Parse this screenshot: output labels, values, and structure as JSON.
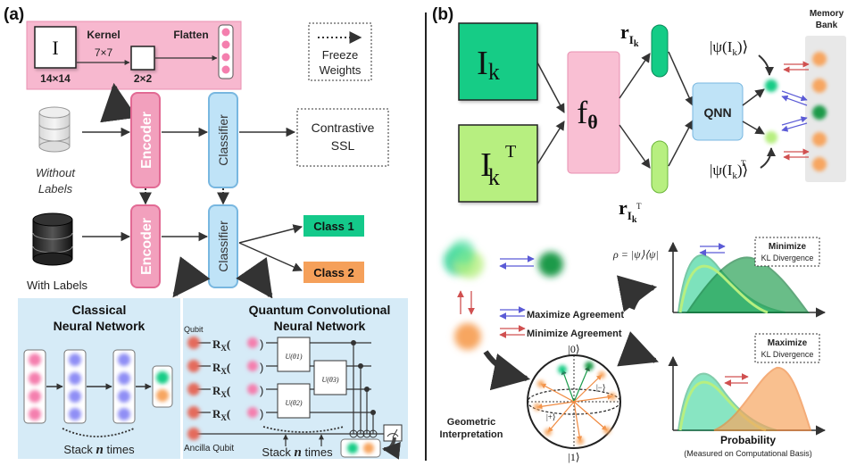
{
  "panel_a": {
    "label": "(a)",
    "input_symbol": "I",
    "input_size": "14×14",
    "kernel_label": "Kernel",
    "kernel_size": "7×7",
    "pooled_size": "2×2",
    "flatten_label": "Flatten",
    "legend_line1": "Freeze",
    "legend_line2": "Weights",
    "encoder_label": "Encoder",
    "classifier_label": "Classifier",
    "unlabeled_line1": "Without",
    "unlabeled_line2": "Labels",
    "labeled_text": "With Labels",
    "contrastive_line1": "Contrastive",
    "contrastive_line2": "SSL",
    "class1": "Class 1",
    "class2": "Class 2",
    "cnn_line1": "Classical",
    "cnn_line2": "Neural Network",
    "cnn_stack": "Stack",
    "cnn_n": "n",
    "cnn_times": "times",
    "qcnn_line1": "Quantum Convolutional",
    "qcnn_line2": "Neural Network",
    "qubit_label": "Qubit",
    "ancilla_label": "Ancilla Qubit",
    "rx_R": "R",
    "rx_X": "X",
    "gate1": "U(θ1)",
    "gate2": "U(θ2)",
    "gate3": "U(θ3)"
  },
  "panel_b": {
    "label": "(b)",
    "img_I": "I",
    "img_k": "k",
    "img_T": "T",
    "f_main": "f",
    "f_sub": "θ",
    "r_main": "r",
    "r_sub_I": "I",
    "r_sub_k": "k",
    "r_sub_T": "T",
    "qnn_label": "QNN",
    "psi_top": "|ψ(I",
    "psi_k": "k",
    "psi_close": ")⟩",
    "psi_bottom": "|ψ(I",
    "psi_T": "T",
    "memory_line1": "Memory",
    "memory_line2": "Bank",
    "maximize_agreement": "Maximize Agreement",
    "minimize_agreement": "Minimize Agreement",
    "rho_eq": "ρ = |ψ⟩⟨ψ|",
    "minimize_kl_line1": "Minimize",
    "minimize_kl_line2": "KL Divergence",
    "maximize_kl_line1": "Maximize",
    "maximize_kl_line2": "KL Divergence",
    "geometric_line1": "Geometric",
    "geometric_line2": "Interpretation",
    "ket0": "|0⟩",
    "ket1": "|1⟩",
    "ket_plus": "|+⟩",
    "ket_minus": "|−⟩",
    "probability_label": "Probability",
    "probability_note": "(Measured on Computational Basis)"
  },
  "colors": {
    "pink": "#f598b8",
    "pink_box": "#f7b8cf",
    "encoder_fill": "#f2a0bd",
    "encoder_border": "#e26a94",
    "classifier_fill": "#bfe3f7",
    "classifier_border": "#78b7e0",
    "panel_bg": "#d6ebf7",
    "teal": "#14cc86",
    "light_green": "#b7ef80",
    "orange": "#f7a660",
    "class1": "#14c98a",
    "class2": "#f5a05a",
    "node_pink": "#f47fae",
    "node_blue": "#8f8ef5",
    "qubit_red": "#e46b5b",
    "purple_arrow": "#5b5bd6",
    "red_arrow": "#d05050"
  }
}
